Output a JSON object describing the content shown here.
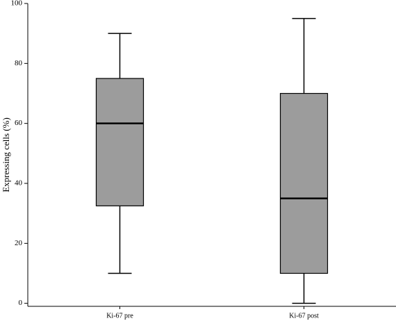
{
  "chart_data": {
    "type": "box",
    "y_label": "Expressing cells (%)",
    "categories": [
      "Ki-67 pre",
      "Ki-67 post"
    ],
    "boxes": [
      {
        "min": 10,
        "q1": 32.5,
        "median": 60,
        "q3": 75,
        "max": 90
      },
      {
        "min": 0,
        "q1": 10,
        "median": 35,
        "q3": 70,
        "max": 95
      }
    ],
    "color": "#9c9c9c",
    "ylim": [
      -1,
      100
    ],
    "yticks": [
      0,
      20,
      40,
      60,
      80,
      100
    ]
  }
}
